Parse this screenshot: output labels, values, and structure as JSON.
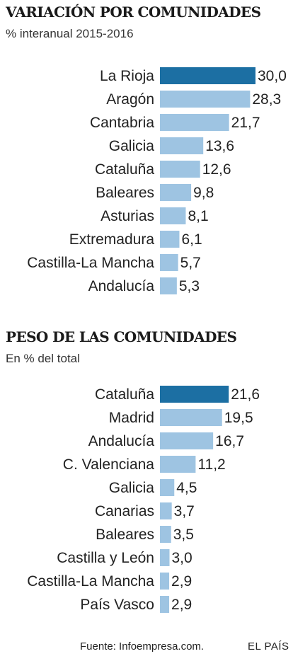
{
  "chart_data": [
    {
      "type": "bar",
      "orientation": "horizontal",
      "title": "VARIACIÓN POR COMUNIDADES",
      "subtitle": "% interanual 2015-2016",
      "categories": [
        "La Rioja",
        "Aragón",
        "Cantabria",
        "Galicia",
        "Cataluña",
        "Baleares",
        "Asturias",
        "Extremadura",
        "Castilla-La Mancha",
        "Andalucía"
      ],
      "values": [
        30.0,
        28.3,
        21.7,
        13.6,
        12.6,
        9.8,
        8.1,
        6.1,
        5.7,
        5.3
      ],
      "value_labels": [
        "30,0",
        "28,3",
        "21,7",
        "13,6",
        "12,6",
        "9,8",
        "8,1",
        "6,1",
        "5,7",
        "5,3"
      ],
      "highlight": "La Rioja",
      "grid": false,
      "legend": "none"
    },
    {
      "type": "bar",
      "orientation": "horizontal",
      "title": "PESO DE LAS COMUNIDADES",
      "subtitle": "En % del total",
      "categories": [
        "Cataluña",
        "Madrid",
        "Andalucía",
        "C. Valenciana",
        "Galicia",
        "Canarias",
        "Baleares",
        "Castilla y León",
        "Castilla-La Mancha",
        "País Vasco"
      ],
      "values": [
        21.6,
        19.5,
        16.7,
        11.2,
        4.5,
        3.7,
        3.5,
        3.0,
        2.9,
        2.9
      ],
      "value_labels": [
        "21,6",
        "19,5",
        "16,7",
        "11,2",
        "4,5",
        "3,7",
        "3,5",
        "3,0",
        "2,9",
        "2,9"
      ],
      "highlight": "Cataluña",
      "grid": false,
      "legend": "none"
    }
  ],
  "colors": {
    "highlight": "#1c6fa3",
    "bar": "#9ec4e2"
  },
  "footer": {
    "source": "Fuente: Infoempresa.com.",
    "brand": "EL PAÍS"
  }
}
